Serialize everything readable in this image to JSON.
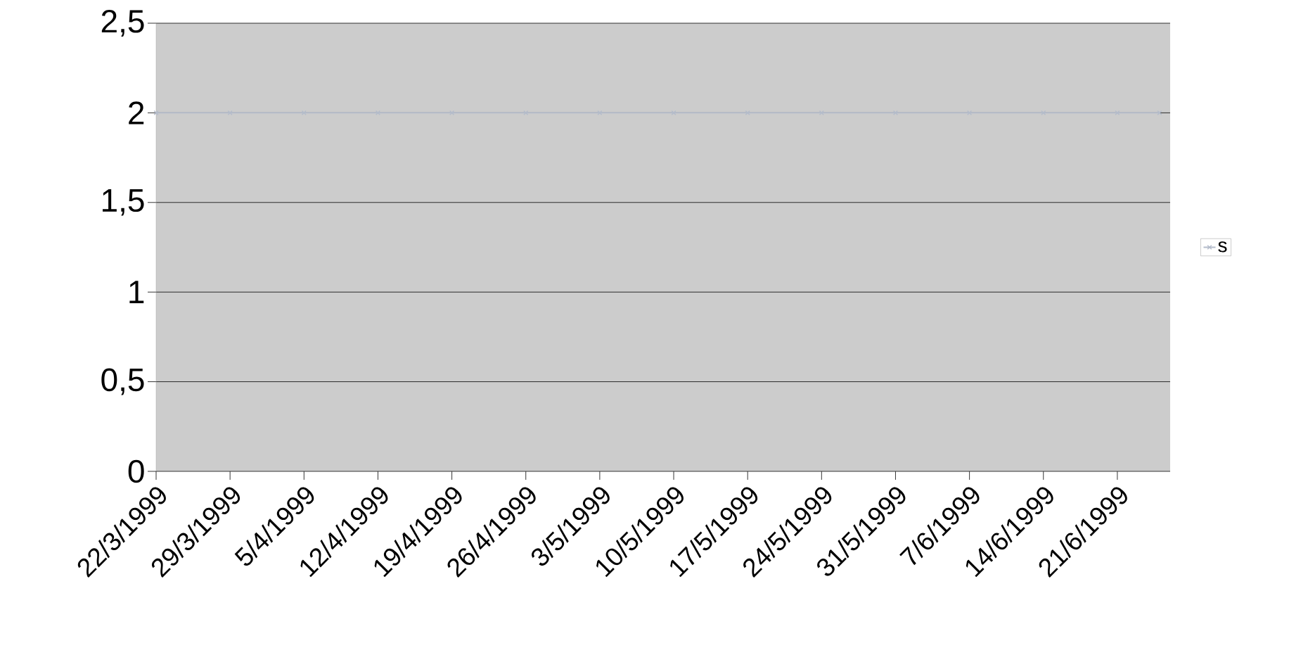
{
  "chart_data": {
    "type": "line",
    "x": [
      "1999-03-22",
      "1999-03-29",
      "1999-04-05",
      "1999-04-12",
      "1999-04-19",
      "1999-04-26",
      "1999-05-03",
      "1999-05-10",
      "1999-05-17",
      "1999-05-24",
      "1999-05-31",
      "1999-06-07",
      "1999-06-14",
      "1999-06-21",
      "1999-06-25"
    ],
    "series": [
      {
        "name": "s",
        "color": "#b4bccb",
        "values": [
          2,
          2,
          2,
          2,
          2,
          2,
          2,
          2,
          2,
          2,
          2,
          2,
          2,
          2,
          2
        ]
      }
    ],
    "xlim": [
      "1999-03-22",
      "1999-06-26"
    ],
    "xticks": [
      {
        "value": "1999-03-22",
        "label": "22/3/1999"
      },
      {
        "value": "1999-03-29",
        "label": "29/3/1999"
      },
      {
        "value": "1999-04-05",
        "label": "5/4/1999"
      },
      {
        "value": "1999-04-12",
        "label": "12/4/1999"
      },
      {
        "value": "1999-04-19",
        "label": "19/4/1999"
      },
      {
        "value": "1999-04-26",
        "label": "26/4/1999"
      },
      {
        "value": "1999-05-03",
        "label": "3/5/1999"
      },
      {
        "value": "1999-05-10",
        "label": "10/5/1999"
      },
      {
        "value": "1999-05-17",
        "label": "17/5/1999"
      },
      {
        "value": "1999-05-24",
        "label": "24/5/1999"
      },
      {
        "value": "1999-05-31",
        "label": "31/5/1999"
      },
      {
        "value": "1999-06-07",
        "label": "7/6/1999"
      },
      {
        "value": "1999-06-14",
        "label": "14/6/1999"
      },
      {
        "value": "1999-06-21",
        "label": "21/6/1999"
      }
    ],
    "ylim": [
      0,
      2.5
    ],
    "yticks": [
      0,
      {
        "value": 0.5,
        "label": "0,5"
      },
      1,
      {
        "value": 1.5,
        "label": "1,5"
      },
      2,
      {
        "value": 2.5,
        "label": "2,5"
      }
    ],
    "grid": "y",
    "legend": "right",
    "marker": "cross",
    "line_style": "solid"
  }
}
